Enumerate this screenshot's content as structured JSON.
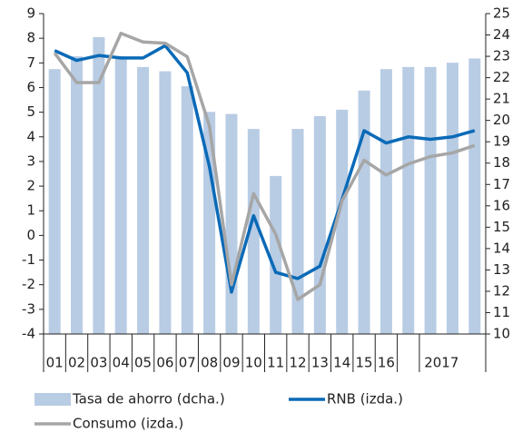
{
  "chart_data": {
    "type": "bar-line",
    "categories": [
      "01",
      "02",
      "03",
      "04",
      "05",
      "06",
      "07",
      "08",
      "09",
      "10",
      "11",
      "12",
      "13",
      "14",
      "15",
      "16",
      null,
      "2017",
      null,
      null
    ],
    "series": [
      {
        "name": "Tasa de ahorro (dcha.)",
        "type": "bar",
        "axis": "y2",
        "color": "#b8cce4",
        "values": [
          22.4,
          23.0,
          23.9,
          23.0,
          22.5,
          22.3,
          21.6,
          20.4,
          20.3,
          19.6,
          17.4,
          19.6,
          20.2,
          20.5,
          21.4,
          22.4,
          22.5,
          22.5,
          22.7,
          22.9
        ]
      },
      {
        "name": "RNB (izda.)",
        "type": "line",
        "axis": "y",
        "color": "#0a6ab7",
        "values": [
          7.5,
          7.1,
          7.3,
          7.2,
          7.2,
          7.7,
          6.6,
          2.8,
          -2.3,
          0.8,
          -1.5,
          -1.75,
          -1.25,
          1.45,
          4.25,
          3.75,
          4.0,
          3.9,
          4.0,
          4.25
        ]
      },
      {
        "name": "Consumo (izda.)",
        "type": "line",
        "axis": "y",
        "color": "#a6a6a6",
        "values": [
          7.4,
          6.2,
          6.2,
          8.2,
          7.85,
          7.8,
          7.25,
          4.45,
          -2.0,
          1.7,
          0.05,
          -2.6,
          -2.0,
          1.4,
          3.05,
          2.45,
          2.9,
          3.2,
          3.35,
          3.65
        ]
      }
    ],
    "ylim": [
      -4,
      9
    ],
    "yticks": [
      -4,
      -3,
      -2,
      -1,
      0,
      1,
      2,
      3,
      4,
      5,
      6,
      7,
      8,
      9
    ],
    "y2lim": [
      10,
      25
    ],
    "y2ticks": [
      10,
      11,
      12,
      13,
      14,
      15,
      16,
      17,
      18,
      19,
      20,
      21,
      22,
      23,
      24,
      25
    ],
    "grid": false
  }
}
